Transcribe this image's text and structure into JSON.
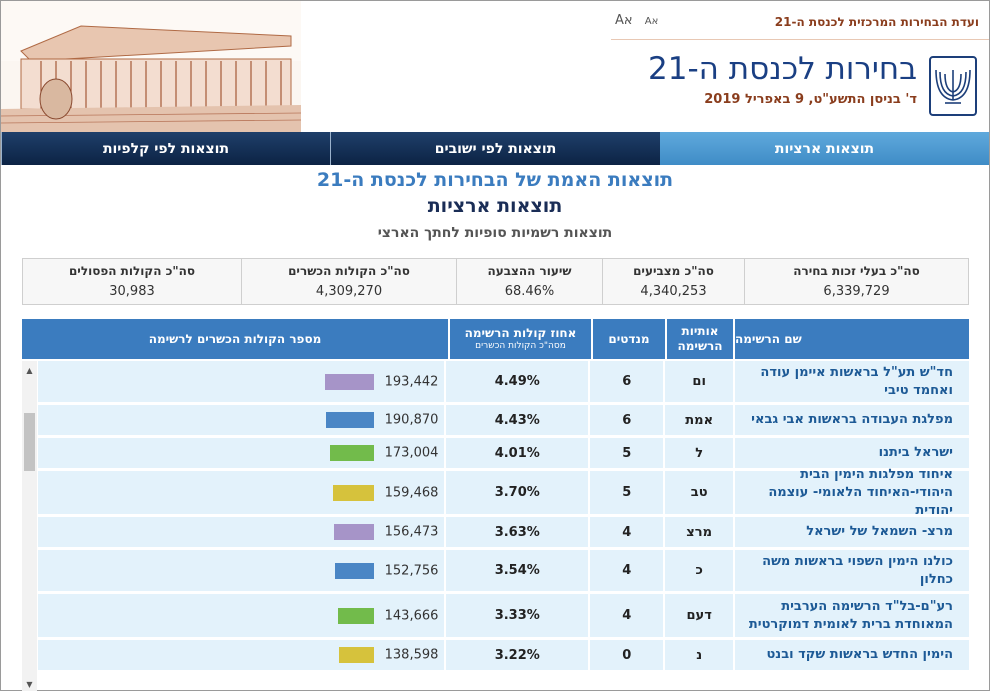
{
  "header": {
    "committee": "ועדת הבחירות המרכזית לכנסת ה-21",
    "font_large": "Aא",
    "font_small": "Aא",
    "title": "בחירות לכנסת ה-21",
    "date": "ד' בניסן התשע\"ט, 9 באפריל 2019"
  },
  "tabs": [
    {
      "label": "תוצאות ארציות",
      "active": true
    },
    {
      "label": "תוצאות לפי ישובים",
      "active": false
    },
    {
      "label": "תוצאות לפי קלפיות",
      "active": false
    }
  ],
  "titles": {
    "main": "תוצאות האמת של הבחירות לכנסת ה-21",
    "sub": "תוצאות ארציות",
    "small": "תוצאות רשמיות סופיות לחתך הארצי"
  },
  "summary": [
    {
      "label": "סה\"כ בעלי זכות בחירה",
      "value": "6,339,729"
    },
    {
      "label": "סה\"כ מצביעים",
      "value": "4,340,253"
    },
    {
      "label": "שיעור ההצבעה",
      "value": "68.46%"
    },
    {
      "label": "סה\"כ הקולות הכשרים",
      "value": "4,309,270"
    },
    {
      "label": "סה\"כ הקולות הפסולים",
      "value": "30,983"
    }
  ],
  "table": {
    "headers": {
      "name": "שם הרשימה",
      "letters": "אותיות הרשימה",
      "seats": "מנדטים",
      "pct": "אחוז קולות הרשימה",
      "pct_sub": "מסה\"כ הקולות הכשרים",
      "votes": "מספר הקולות הכשרים לרשימה"
    },
    "rows": [
      {
        "name": "חד\"ש תע\"ל בראשות איימן עודה ואחמד טיבי",
        "letters": "ום",
        "seats": "6",
        "pct": "4.49%",
        "votes": "193,442",
        "bar": 0.7,
        "color": "#a694c8"
      },
      {
        "name": "מפלגת העבודה בראשות אבי גבאי",
        "letters": "אמת",
        "seats": "6",
        "pct": "4.43%",
        "votes": "190,870",
        "bar": 0.69,
        "color": "#4a86c5"
      },
      {
        "name": "ישראל ביתנו",
        "letters": "ל",
        "seats": "5",
        "pct": "4.01%",
        "votes": "173,004",
        "bar": 0.63,
        "color": "#72bb4b"
      },
      {
        "name": "איחוד מפלגות הימין הבית היהודי-האיחוד הלאומי- עוצמה יהודית",
        "letters": "טב",
        "seats": "5",
        "pct": "3.70%",
        "votes": "159,468",
        "bar": 0.58,
        "color": "#d6c23c"
      },
      {
        "name": "מרצ- השמאל של ישראל",
        "letters": "מרצ",
        "seats": "4",
        "pct": "3.63%",
        "votes": "156,473",
        "bar": 0.57,
        "color": "#a694c8"
      },
      {
        "name": "כולנו הימין השפוי בראשות משה כחלון",
        "letters": "כ",
        "seats": "4",
        "pct": "3.54%",
        "votes": "152,756",
        "bar": 0.56,
        "color": "#4a86c5"
      },
      {
        "name": "רע\"ם-בל\"ד הרשימה הערבית המאוחדת ברית לאומית דמוקרטית",
        "letters": "דעם",
        "seats": "4",
        "pct": "3.33%",
        "votes": "143,666",
        "bar": 0.52,
        "color": "#72bb4b"
      },
      {
        "name": "הימין החדש בראשות שקד ובנט",
        "letters": "נ",
        "seats": "0",
        "pct": "3.22%",
        "votes": "138,598",
        "bar": 0.5,
        "color": "#d6c23c"
      }
    ]
  }
}
